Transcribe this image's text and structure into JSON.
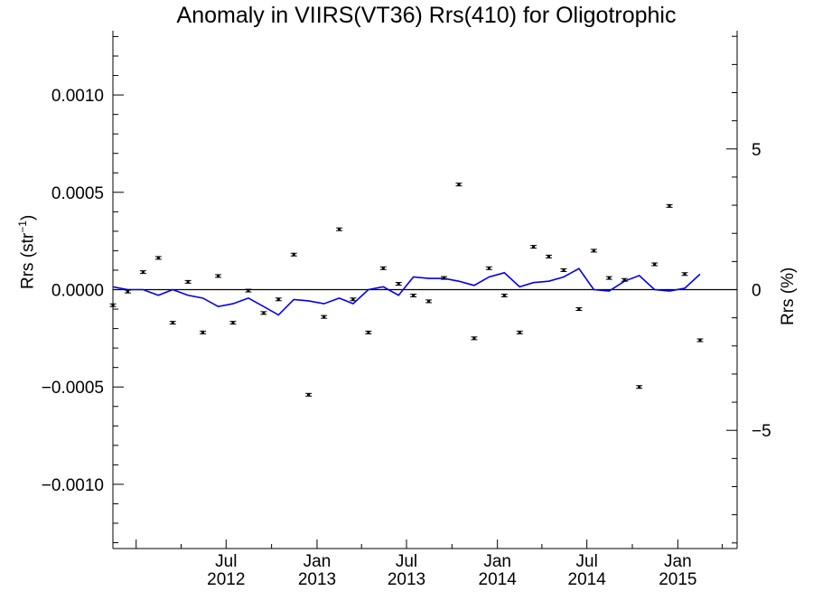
{
  "chart_data": {
    "type": "scatter",
    "title": "Anomaly in VIIRS(VT36) Rrs(410) for Oligotrophic",
    "ylabel_left": "Rrs (str",
    "ylabel_left_sup": "−1",
    "ylabel_left_close": ")",
    "ylabel_right": "Rrs (%)",
    "ylim": [
      -0.00133,
      0.00133
    ],
    "ylim_right": [
      -9.2,
      9.2
    ],
    "y_ticks": [
      {
        "value": 0.001,
        "label": "0.0010"
      },
      {
        "value": 0.0005,
        "label": "0.0005"
      },
      {
        "value": 0.0,
        "label": "0.0000"
      },
      {
        "value": -0.0005,
        "label": "−0.0005"
      },
      {
        "value": -0.001,
        "label": "−0.0010"
      }
    ],
    "y_right_ticks": [
      {
        "value": 5,
        "label": "5"
      },
      {
        "value": 0,
        "label": "0"
      },
      {
        "value": -5,
        "label": "−5"
      }
    ],
    "xlim": [
      "2011-11-15",
      "2015-05-01"
    ],
    "x_ticks": [
      {
        "date": "2012-07-01",
        "label_top": "Jul",
        "label_bottom": "2012"
      },
      {
        "date": "2013-01-01",
        "label_top": "Jan",
        "label_bottom": "2013"
      },
      {
        "date": "2013-07-01",
        "label_top": "Jul",
        "label_bottom": "2013"
      },
      {
        "date": "2014-01-01",
        "label_top": "Jan",
        "label_bottom": "2014"
      },
      {
        "date": "2014-07-01",
        "label_top": "Jul",
        "label_bottom": "2014"
      },
      {
        "date": "2015-01-01",
        "label_top": "Jan",
        "label_bottom": "2015"
      }
    ],
    "series": [
      {
        "kind": "points_with_error_bars",
        "color": "#000000",
        "points": [
          {
            "x": "2011-11-15",
            "y": -8e-05
          },
          {
            "x": "2011-12-15",
            "y": -1e-05
          },
          {
            "x": "2012-01-15",
            "y": 9e-05
          },
          {
            "x": "2012-02-15",
            "y": 0.000163
          },
          {
            "x": "2012-03-15",
            "y": -0.00017
          },
          {
            "x": "2012-04-15",
            "y": 4e-05
          },
          {
            "x": "2012-05-15",
            "y": -0.00022
          },
          {
            "x": "2012-06-15",
            "y": 7e-05
          },
          {
            "x": "2012-07-15",
            "y": -0.00017
          },
          {
            "x": "2012-08-15",
            "y": -5e-06
          },
          {
            "x": "2012-09-15",
            "y": -0.00012
          },
          {
            "x": "2012-10-15",
            "y": -5e-05
          },
          {
            "x": "2012-11-15",
            "y": 0.00018
          },
          {
            "x": "2012-12-15",
            "y": -0.00054
          },
          {
            "x": "2013-01-15",
            "y": -0.00014
          },
          {
            "x": "2013-02-15",
            "y": 0.00031
          },
          {
            "x": "2013-03-15",
            "y": -5e-05
          },
          {
            "x": "2013-04-15",
            "y": -0.00022
          },
          {
            "x": "2013-05-15",
            "y": 0.00011
          },
          {
            "x": "2013-06-15",
            "y": 3e-05
          },
          {
            "x": "2013-07-15",
            "y": -3e-05
          },
          {
            "x": "2013-08-15",
            "y": -6e-05
          },
          {
            "x": "2013-09-15",
            "y": 6e-05
          },
          {
            "x": "2013-10-15",
            "y": 0.00054
          },
          {
            "x": "2013-11-15",
            "y": -0.00025
          },
          {
            "x": "2013-12-15",
            "y": 0.00011
          },
          {
            "x": "2014-01-15",
            "y": -3e-05
          },
          {
            "x": "2014-02-15",
            "y": -0.00022
          },
          {
            "x": "2014-03-15",
            "y": 0.00022
          },
          {
            "x": "2014-04-15",
            "y": 0.00017
          },
          {
            "x": "2014-05-15",
            "y": 0.0001
          },
          {
            "x": "2014-06-15",
            "y": -0.0001
          },
          {
            "x": "2014-07-15",
            "y": 0.0002
          },
          {
            "x": "2014-08-15",
            "y": 6e-05
          },
          {
            "x": "2014-09-15",
            "y": 5e-05
          },
          {
            "x": "2014-10-15",
            "y": -0.0005
          },
          {
            "x": "2014-11-15",
            "y": 0.00013
          },
          {
            "x": "2014-12-15",
            "y": 0.00043
          },
          {
            "x": "2015-01-15",
            "y": 8e-05
          },
          {
            "x": "2015-02-15",
            "y": -0.00026
          }
        ]
      },
      {
        "kind": "line",
        "color": "#0000ee",
        "axis": "right",
        "points": [
          {
            "x": "2011-11-15",
            "y": 0.1
          },
          {
            "x": "2011-12-15",
            "y": 0.0
          },
          {
            "x": "2012-01-15",
            "y": 0.0
          },
          {
            "x": "2012-02-15",
            "y": -0.2
          },
          {
            "x": "2012-03-15",
            "y": 0.0
          },
          {
            "x": "2012-04-15",
            "y": -0.2
          },
          {
            "x": "2012-05-15",
            "y": -0.3
          },
          {
            "x": "2012-06-15",
            "y": -0.6
          },
          {
            "x": "2012-07-15",
            "y": -0.5
          },
          {
            "x": "2012-08-15",
            "y": -0.3
          },
          {
            "x": "2012-09-15",
            "y": -0.6
          },
          {
            "x": "2012-10-15",
            "y": -0.9
          },
          {
            "x": "2012-11-15",
            "y": -0.35
          },
          {
            "x": "2012-12-15",
            "y": -0.4
          },
          {
            "x": "2013-01-15",
            "y": -0.5
          },
          {
            "x": "2013-02-15",
            "y": -0.3
          },
          {
            "x": "2013-03-15",
            "y": -0.5
          },
          {
            "x": "2013-04-15",
            "y": 0.0
          },
          {
            "x": "2013-05-15",
            "y": 0.1
          },
          {
            "x": "2013-06-15",
            "y": -0.2
          },
          {
            "x": "2013-07-15",
            "y": 0.45
          },
          {
            "x": "2013-08-15",
            "y": 0.4
          },
          {
            "x": "2013-09-15",
            "y": 0.4
          },
          {
            "x": "2013-10-15",
            "y": 0.3
          },
          {
            "x": "2013-11-15",
            "y": 0.15
          },
          {
            "x": "2013-12-15",
            "y": 0.45
          },
          {
            "x": "2014-01-15",
            "y": 0.6
          },
          {
            "x": "2014-02-15",
            "y": 0.1
          },
          {
            "x": "2014-03-15",
            "y": 0.25
          },
          {
            "x": "2014-04-15",
            "y": 0.3
          },
          {
            "x": "2014-05-15",
            "y": 0.45
          },
          {
            "x": "2014-06-15",
            "y": 0.75
          },
          {
            "x": "2014-07-15",
            "y": 0.0
          },
          {
            "x": "2014-08-15",
            "y": -0.05
          },
          {
            "x": "2014-09-15",
            "y": 0.3
          },
          {
            "x": "2014-10-15",
            "y": 0.5
          },
          {
            "x": "2014-11-15",
            "y": 0.0
          },
          {
            "x": "2014-12-15",
            "y": -0.05
          },
          {
            "x": "2015-01-15",
            "y": 0.05
          },
          {
            "x": "2015-02-15",
            "y": 0.55
          }
        ]
      }
    ],
    "zero_line": true,
    "grid": false,
    "legend": "none"
  }
}
